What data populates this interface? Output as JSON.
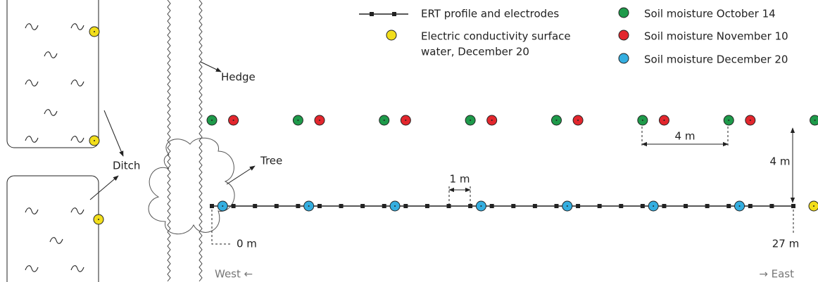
{
  "legend": [
    {
      "label": "ERT profile and electrodes"
    },
    {
      "label_lines": [
        "Electric conductivity surface",
        "water, December 20"
      ]
    },
    {
      "label": "Soil moisture October 14"
    },
    {
      "label": "Soil moisture November 10"
    },
    {
      "label": "Soil moisture December 20"
    }
  ],
  "labels": {
    "hedge": "Hedge",
    "ditch": "Ditch",
    "tree": "Tree",
    "electrode_spacing": "1 m",
    "moisture_spacing": "4 m",
    "row_offset": "4 m",
    "start": "0 m",
    "end": "27 m",
    "west": "West ←",
    "east": "→ East"
  }
}
